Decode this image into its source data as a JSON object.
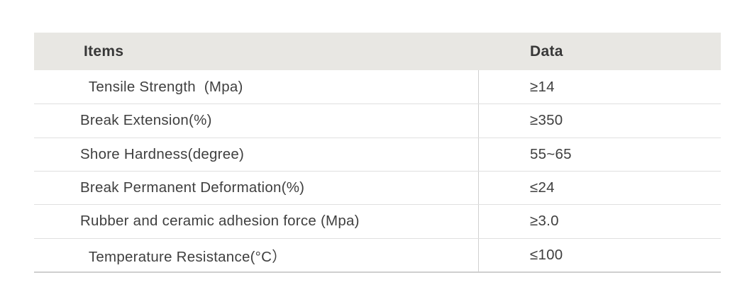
{
  "table": {
    "header": {
      "items_label": "Items",
      "data_label": "Data"
    },
    "rows": [
      {
        "item": "  Tensile Strength  (Mpa)",
        "data": "≥14"
      },
      {
        "item": "Break Extension(%)",
        "data": "≥350"
      },
      {
        "item": "Shore Hardness(degree)",
        "data": "55~65"
      },
      {
        "item": "Break Permanent Deformation(%)",
        "data": "≤24"
      },
      {
        "item": "Rubber and ceramic adhesion force (Mpa)",
        "data": "≥3.0"
      },
      {
        "item": "  Temperature Resistance(°C）",
        "data": "≤100"
      }
    ],
    "colors": {
      "header_background": "#e8e7e3",
      "header_text": "#383838",
      "body_text": "#3f3f3f",
      "row_divider": "#e0e0e0",
      "column_divider": "#d0d0d0",
      "bottom_border": "#cfcfcf"
    }
  }
}
